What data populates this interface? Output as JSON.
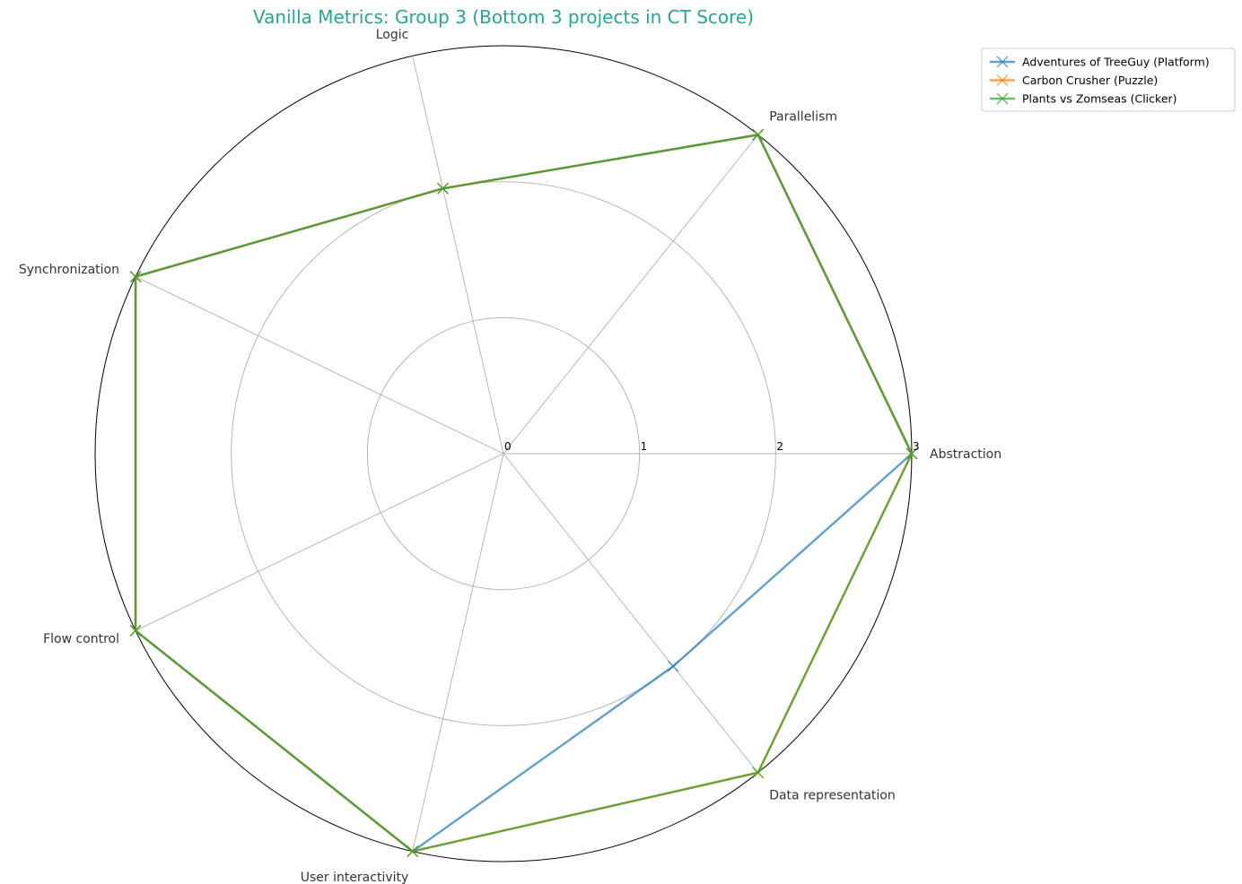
{
  "chart_data": {
    "type": "radar",
    "title": "Vanilla Metrics: Group 3 (Bottom 3 projects in CT Score)",
    "title_color": "#2aa38f",
    "axes": [
      "Abstraction",
      "Parallelism",
      "Logic",
      "Synchronization",
      "Flow control",
      "User interactivity",
      "Data representation"
    ],
    "r_ticks": [
      "0",
      "1",
      "2",
      "3"
    ],
    "rlim": [
      0,
      3
    ],
    "grid": true,
    "legend_position": "outside top-right",
    "series": [
      {
        "name": "Adventures of TreeGuy (Platform)",
        "color": "#1f77b4",
        "marker": "x",
        "values": [
          3,
          3,
          2,
          3,
          3,
          3,
          2
        ]
      },
      {
        "name": "Carbon Crusher (Puzzle)",
        "color": "#ff7f0e",
        "marker": "x",
        "values": [
          3,
          3,
          2,
          3,
          3,
          3,
          3
        ]
      },
      {
        "name": "Plants vs Zomseas (Clicker)",
        "color": "#2ca02c",
        "marker": "x",
        "values": [
          3,
          3,
          2,
          3,
          3,
          3,
          3
        ]
      }
    ]
  }
}
